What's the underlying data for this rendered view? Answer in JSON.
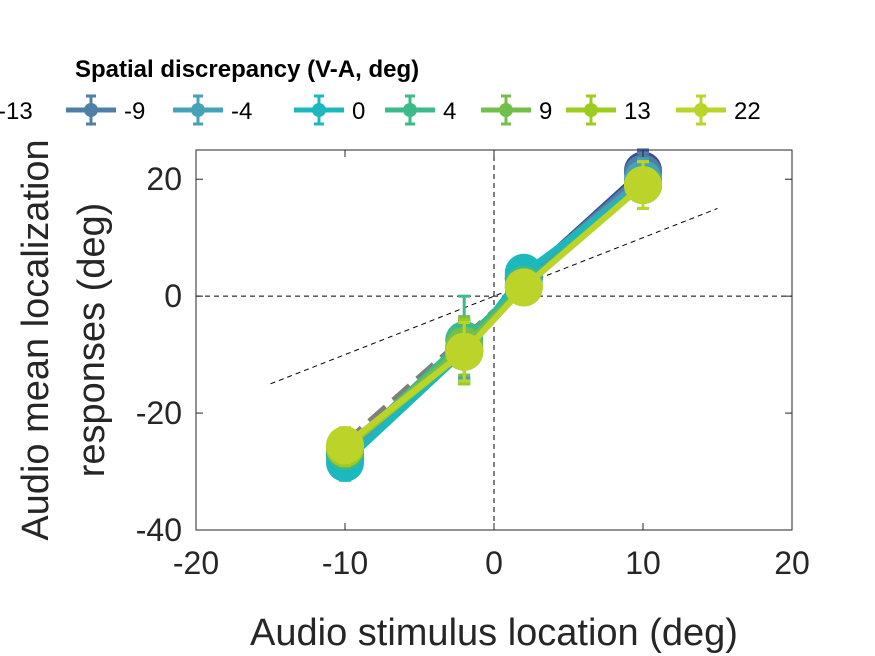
{
  "chart_data": {
    "type": "line",
    "title": "",
    "xlabel": "Audio stimulus location (deg)",
    "ylabel_lines": [
      "Audio mean localization",
      "responses (deg)"
    ],
    "xlim": [
      -20,
      20
    ],
    "ylim": [
      -40,
      25
    ],
    "xticks": [
      -20,
      -10,
      0,
      10,
      20
    ],
    "yticks": [
      -40,
      -20,
      0,
      20
    ],
    "xtick_labels": [
      "-20",
      "-10",
      "0",
      "10",
      "20"
    ],
    "ytick_labels": [
      "-40",
      "-20",
      "0",
      "20"
    ],
    "legend_title": "Spatial discrepancy (V-A, deg)",
    "legend_placement": "top",
    "x": [
      -10,
      -2,
      2,
      10
    ],
    "series": [
      {
        "name": "-13",
        "color": "#3b4f8f",
        "values": [
          -27.5,
          -9.5,
          3.0,
          21.5
        ],
        "err": [
          3.0,
          5.0,
          2.5,
          3.5
        ]
      },
      {
        "name": "-9",
        "color": "#4f7fa6",
        "values": [
          -27.0,
          -9.0,
          3.0,
          21.0
        ],
        "err": [
          3.0,
          5.0,
          2.5,
          3.5
        ]
      },
      {
        "name": "-4",
        "color": "#45a3b8",
        "values": [
          -27.5,
          -9.0,
          3.5,
          20.0
        ],
        "err": [
          3.0,
          5.0,
          2.5,
          3.5
        ]
      },
      {
        "name": "0",
        "color": "#1bb8be",
        "values": [
          -28.5,
          -9.5,
          4.0,
          19.0
        ],
        "err": [
          3.0,
          5.0,
          2.5,
          4.0
        ]
      },
      {
        "name": "4",
        "color": "#3dba8a",
        "values": [
          -26.5,
          -7.5,
          2.0,
          19.0
        ],
        "err": [
          3.0,
          7.5,
          2.5,
          4.0
        ]
      },
      {
        "name": "9",
        "color": "#72c04b",
        "values": [
          -26.0,
          -8.5,
          1.5,
          19.0
        ],
        "err": [
          3.0,
          5.0,
          2.5,
          4.0
        ]
      },
      {
        "name": "13",
        "color": "#9ccc1e",
        "values": [
          -26.0,
          -9.5,
          1.5,
          19.0
        ],
        "err": [
          3.0,
          5.5,
          2.5,
          4.0
        ]
      },
      {
        "name": "22",
        "color": "#bcd42a",
        "values": [
          -25.5,
          -9.5,
          1.5,
          19.0
        ],
        "err": [
          3.0,
          5.0,
          2.5,
          4.0
        ]
      }
    ],
    "reference_lines": [
      {
        "kind": "identity",
        "style": "thick-dashed-gray",
        "x": [
          -10,
          10
        ],
        "y": [
          -25,
          20
        ]
      },
      {
        "kind": "reference",
        "style": "thin-dashed-black",
        "x": [
          -15,
          15
        ],
        "y": [
          -15,
          15
        ]
      },
      {
        "kind": "zero-horizontal",
        "style": "thin-dashed-black",
        "x": [
          -20,
          20
        ],
        "y": [
          0,
          0
        ]
      },
      {
        "kind": "zero-vertical",
        "style": "thin-dashed-black",
        "x": [
          0,
          0
        ],
        "y": [
          -40,
          25
        ]
      }
    ]
  }
}
